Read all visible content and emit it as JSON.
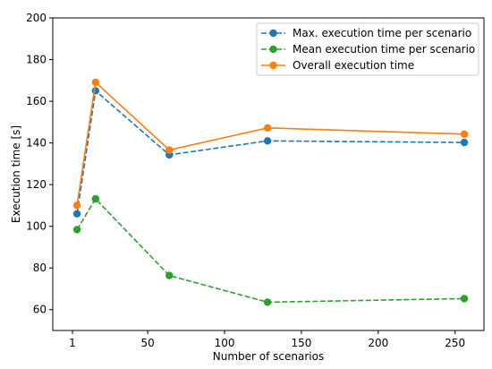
{
  "chart_data": {
    "type": "line",
    "xlabel": "Number of scenarios",
    "ylabel": "Execution time [s]",
    "xlim": [
      -11.8,
      268.8
    ],
    "ylim": [
      50,
      200
    ],
    "xticks": [
      1,
      50,
      100,
      150,
      200,
      250
    ],
    "yticks": [
      60,
      80,
      100,
      120,
      140,
      160,
      180,
      200
    ],
    "grid": false,
    "legend_position": "top-right",
    "series": [
      {
        "name": "Max. execution time per scenario",
        "color": "#1f77b4",
        "style": "dashed",
        "marker": "circle",
        "x": [
          4,
          16,
          64,
          128,
          256
        ],
        "y": [
          106,
          165,
          134.3,
          141,
          140.2
        ]
      },
      {
        "name": "Mean execution time per scenario",
        "color": "#2ca02c",
        "style": "dashed",
        "marker": "circle",
        "x": [
          4,
          16,
          64,
          128,
          256
        ],
        "y": [
          98.4,
          113.2,
          76.4,
          63.6,
          65.3
        ]
      },
      {
        "name": "Overall execution time",
        "color": "#ff7f0e",
        "style": "solid",
        "marker": "circle",
        "x": [
          4,
          16,
          64,
          128,
          256
        ],
        "y": [
          110.1,
          169.1,
          136.6,
          147.2,
          144.2
        ]
      }
    ]
  }
}
